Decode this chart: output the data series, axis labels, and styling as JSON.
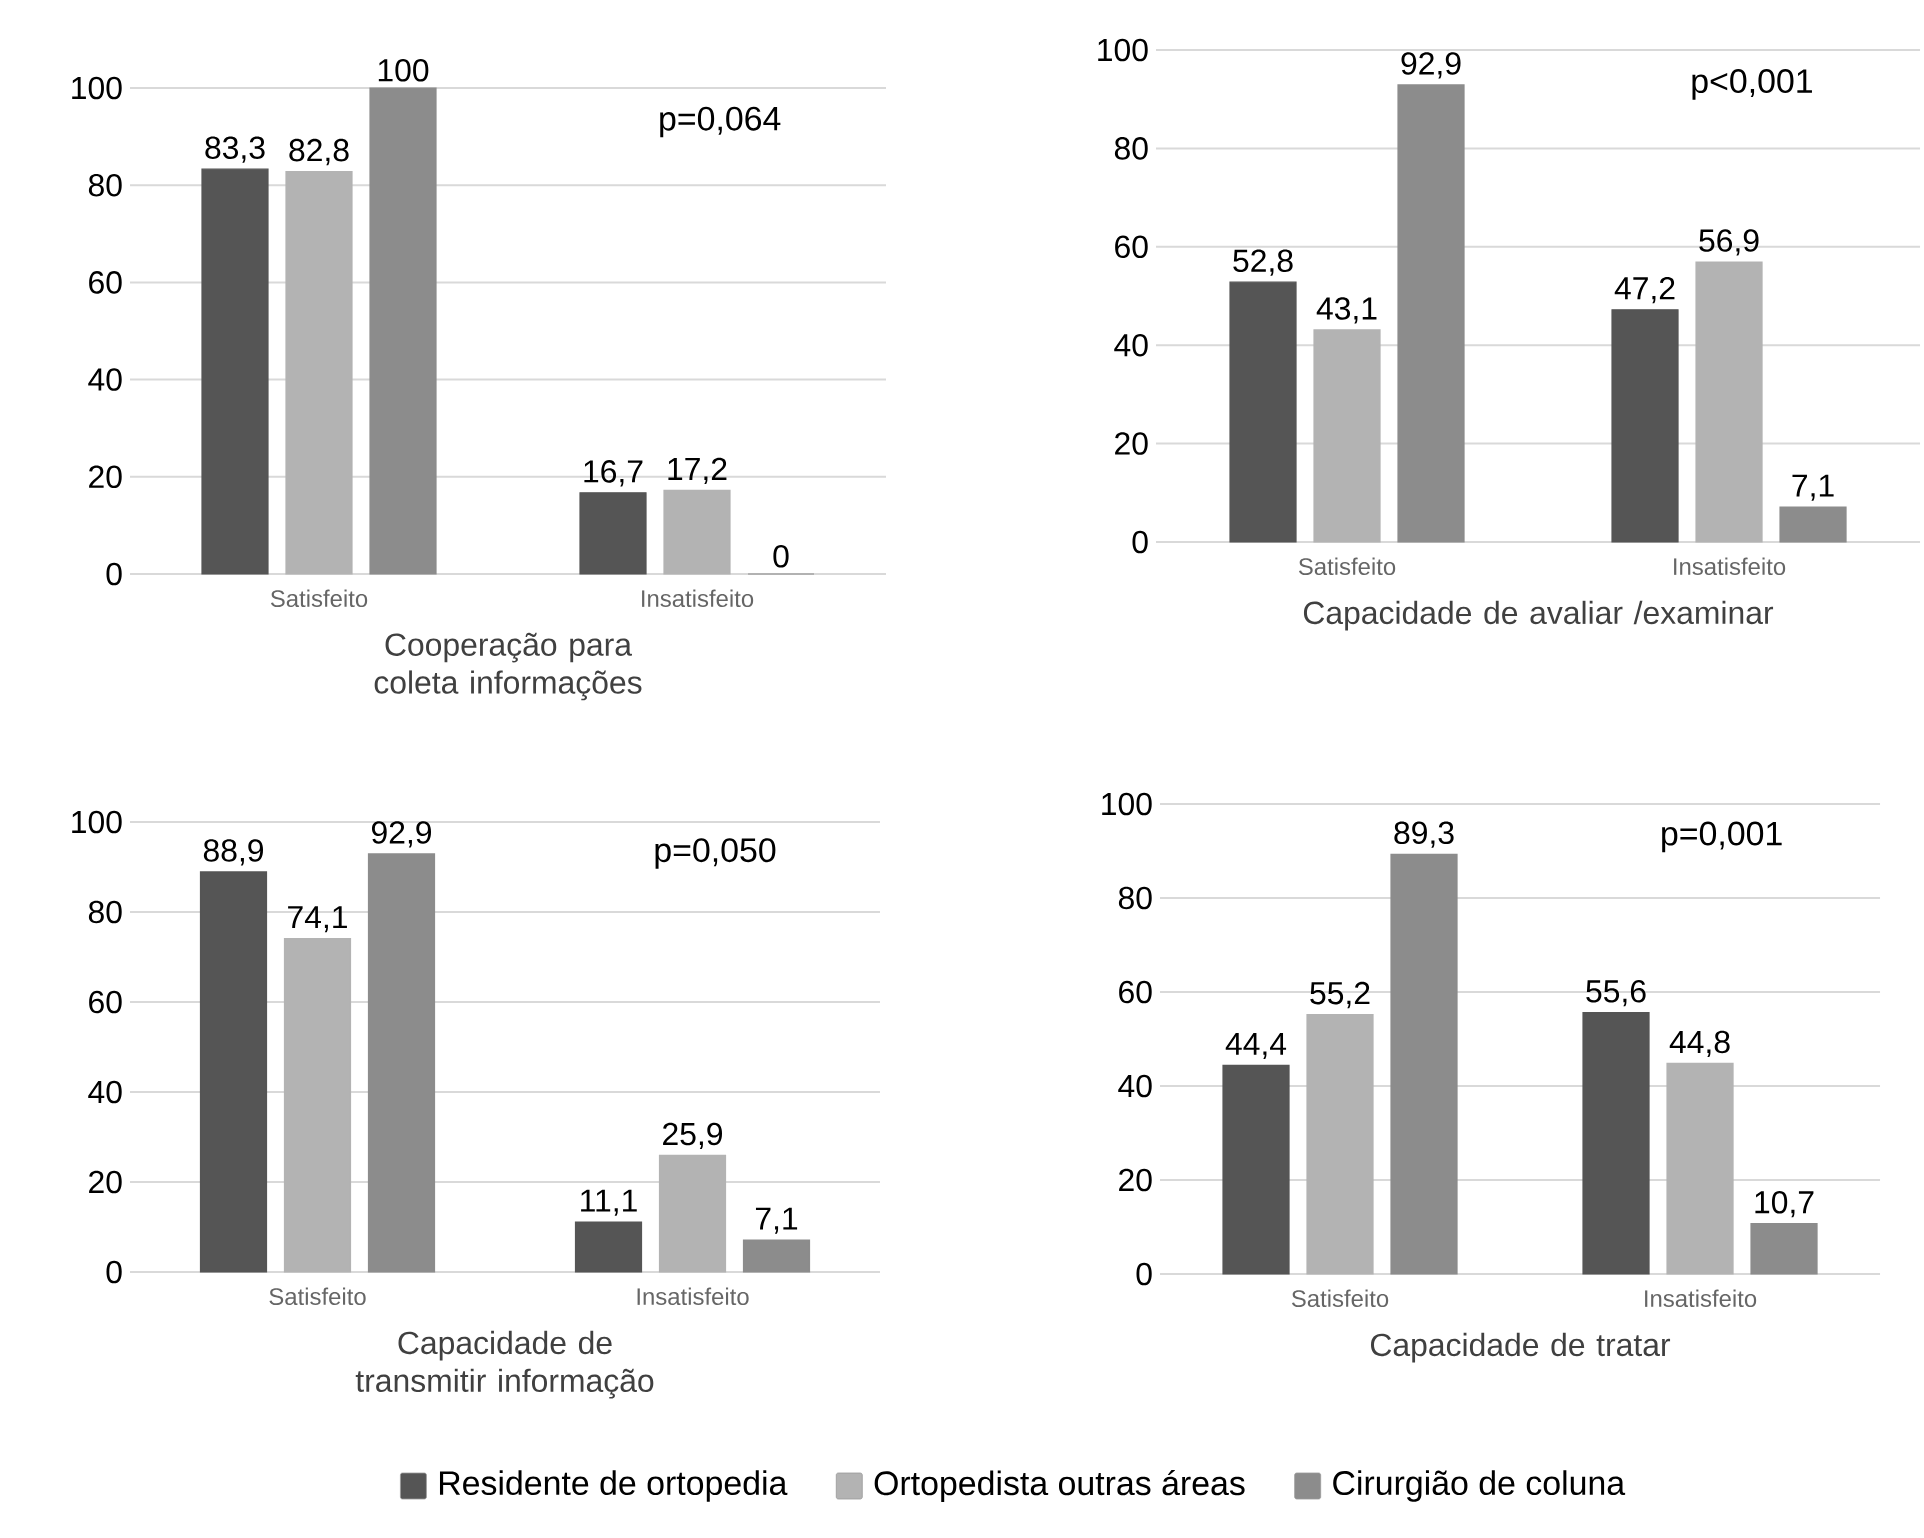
{
  "chart_data": [
    {
      "type": "bar",
      "xlabel": "Cooperação para coleta informações",
      "categories": [
        "Satisfeito",
        "Insatisfeito"
      ],
      "ylim": [
        0,
        100
      ],
      "yticks": [
        0,
        20,
        40,
        60,
        80,
        100
      ],
      "grid": "y",
      "legend": false,
      "annotations": [
        "p=0,064"
      ],
      "series": [
        {
          "color": "#555555",
          "values": [
            83.3,
            16.7
          ],
          "value_labels": [
            "83,3",
            "16,7"
          ]
        },
        {
          "color": "#b3b3b3",
          "values": [
            82.8,
            17.2
          ],
          "value_labels": [
            "82,8",
            "17,2"
          ]
        },
        {
          "color": "#8c8c8c",
          "values": [
            100,
            0
          ],
          "value_labels": [
            "100",
            "0"
          ]
        }
      ]
    },
    {
      "type": "bar",
      "xlabel": "Capacidade de avaliar  /examinar",
      "categories": [
        "Satisfeito",
        "Insatisfeito"
      ],
      "ylim": [
        0,
        100
      ],
      "yticks": [
        0,
        20,
        40,
        60,
        80,
        100
      ],
      "grid": "y",
      "legend": false,
      "annotations": [
        "p<0,001"
      ],
      "series": [
        {
          "color": "#555555",
          "values": [
            52.8,
            47.2
          ],
          "value_labels": [
            "52,8",
            "47,2"
          ]
        },
        {
          "color": "#b3b3b3",
          "values": [
            43.1,
            56.9
          ],
          "value_labels": [
            "43,1",
            "56,9"
          ]
        },
        {
          "color": "#8c8c8c",
          "values": [
            92.9,
            7.1
          ],
          "value_labels": [
            "92,9",
            "7,1"
          ]
        }
      ]
    },
    {
      "type": "bar",
      "xlabel": "Capacidade de transmitir informação",
      "categories": [
        "Satisfeito",
        "Insatisfeito"
      ],
      "ylim": [
        0,
        100
      ],
      "yticks": [
        0,
        20,
        40,
        60,
        80,
        100
      ],
      "grid": "y",
      "legend": false,
      "annotations": [
        "p=0,050"
      ],
      "series": [
        {
          "color": "#555555",
          "values": [
            88.9,
            11.1
          ],
          "value_labels": [
            "88,9",
            "11,1"
          ]
        },
        {
          "color": "#b3b3b3",
          "values": [
            74.1,
            25.9
          ],
          "value_labels": [
            "74,1",
            "25,9"
          ]
        },
        {
          "color": "#8c8c8c",
          "values": [
            92.9,
            7.1
          ],
          "value_labels": [
            "92,9",
            "7,1"
          ]
        }
      ]
    },
    {
      "type": "bar",
      "xlabel": "Capacidade de tratar",
      "categories": [
        "Satisfeito",
        "Insatisfeito"
      ],
      "ylim": [
        0,
        100
      ],
      "yticks": [
        0,
        20,
        40,
        60,
        80,
        100
      ],
      "grid": "y",
      "legend": "bottom",
      "annotations": [
        "p=0,001"
      ],
      "series": [
        {
          "name": "Residente de ortopedia",
          "color": "#555555",
          "values": [
            44.4,
            55.6
          ],
          "value_labels": [
            "44,4",
            "55,6"
          ]
        },
        {
          "name": "Ortopedista outras áreas",
          "color": "#b3b3b3",
          "values": [
            55.2,
            44.8
          ],
          "value_labels": [
            "55,2",
            "44,8"
          ]
        },
        {
          "name": "Cirurgião de coluna",
          "color": "#8c8c8c",
          "values": [
            89.3,
            10.7
          ],
          "value_labels": [
            "89,3",
            "10,7"
          ]
        }
      ]
    }
  ]
}
